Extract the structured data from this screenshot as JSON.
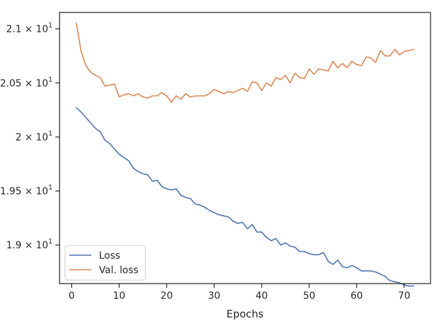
{
  "chart_data": {
    "type": "line",
    "title": "",
    "xlabel": "Epochs",
    "ylabel": "",
    "xlim": [
      -2.55,
      75.55
    ],
    "ylim": [
      18.643,
      21.152
    ],
    "grid": false,
    "legend_position": "lower-left",
    "x_ticks": [
      0,
      10,
      20,
      30,
      40,
      50,
      60,
      70
    ],
    "x_tick_labels": [
      "0",
      "10",
      "20",
      "30",
      "40",
      "50",
      "60",
      "70"
    ],
    "y_ticks": [
      19.0,
      19.5,
      20.0,
      20.5,
      21.0
    ],
    "y_tick_labels": [
      {
        "mantissa": "1.9",
        "base": "10",
        "exponent": "1"
      },
      {
        "mantissa": "1.95",
        "base": "10",
        "exponent": "1"
      },
      {
        "mantissa": "2",
        "base": "10",
        "exponent": "1"
      },
      {
        "mantissa": "2.05",
        "base": "10",
        "exponent": "1"
      },
      {
        "mantissa": "2.1",
        "base": "10",
        "exponent": "1"
      }
    ],
    "multiply_sign": "×",
    "x": [
      1,
      2,
      3,
      4,
      5,
      6,
      7,
      8,
      9,
      10,
      11,
      12,
      13,
      14,
      15,
      16,
      17,
      18,
      19,
      20,
      21,
      22,
      23,
      24,
      25,
      26,
      27,
      28,
      29,
      30,
      31,
      32,
      33,
      34,
      35,
      36,
      37,
      38,
      39,
      40,
      41,
      42,
      43,
      44,
      45,
      46,
      47,
      48,
      49,
      50,
      51,
      52,
      53,
      54,
      55,
      56,
      57,
      58,
      59,
      60,
      61,
      62,
      63,
      64,
      65,
      66,
      67,
      68,
      69,
      70,
      71,
      72
    ],
    "series": [
      {
        "name": "Loss",
        "color": "#4c72b0",
        "values": [
          20.27,
          20.23,
          20.18,
          20.13,
          20.08,
          20.05,
          19.97,
          19.94,
          19.89,
          19.84,
          19.81,
          19.78,
          19.71,
          19.68,
          19.66,
          19.65,
          19.59,
          19.6,
          19.54,
          19.52,
          19.51,
          19.52,
          19.46,
          19.44,
          19.43,
          19.38,
          19.37,
          19.35,
          19.32,
          19.3,
          19.28,
          19.27,
          19.26,
          19.22,
          19.2,
          19.21,
          19.15,
          19.19,
          19.12,
          19.12,
          19.07,
          19.04,
          19.06,
          19.0,
          19.02,
          18.99,
          18.98,
          18.94,
          18.94,
          18.92,
          18.91,
          18.91,
          18.93,
          18.85,
          18.82,
          18.86,
          18.8,
          18.79,
          18.81,
          18.79,
          18.76,
          18.76,
          18.76,
          18.75,
          18.73,
          18.71,
          18.67,
          18.66,
          18.65,
          18.63,
          18.62,
          18.62
        ]
      },
      {
        "name": "Val. loss",
        "color": "#dd8452",
        "values": [
          21.05,
          20.79,
          20.66,
          20.6,
          20.57,
          20.55,
          20.47,
          20.48,
          20.49,
          20.37,
          20.39,
          20.4,
          20.38,
          20.4,
          20.37,
          20.36,
          20.38,
          20.38,
          20.41,
          20.38,
          20.32,
          20.38,
          20.35,
          20.4,
          20.37,
          20.38,
          20.38,
          20.38,
          20.4,
          20.44,
          20.42,
          20.4,
          20.42,
          20.41,
          20.43,
          20.45,
          20.42,
          20.51,
          20.5,
          20.43,
          20.5,
          20.47,
          20.55,
          20.53,
          20.57,
          20.5,
          20.59,
          20.55,
          20.54,
          20.63,
          20.58,
          20.63,
          20.62,
          20.61,
          20.7,
          20.64,
          20.68,
          20.64,
          20.7,
          20.67,
          20.66,
          20.74,
          20.73,
          20.69,
          20.8,
          20.75,
          20.75,
          20.81,
          20.76,
          20.79,
          20.8,
          20.81
        ]
      }
    ]
  }
}
